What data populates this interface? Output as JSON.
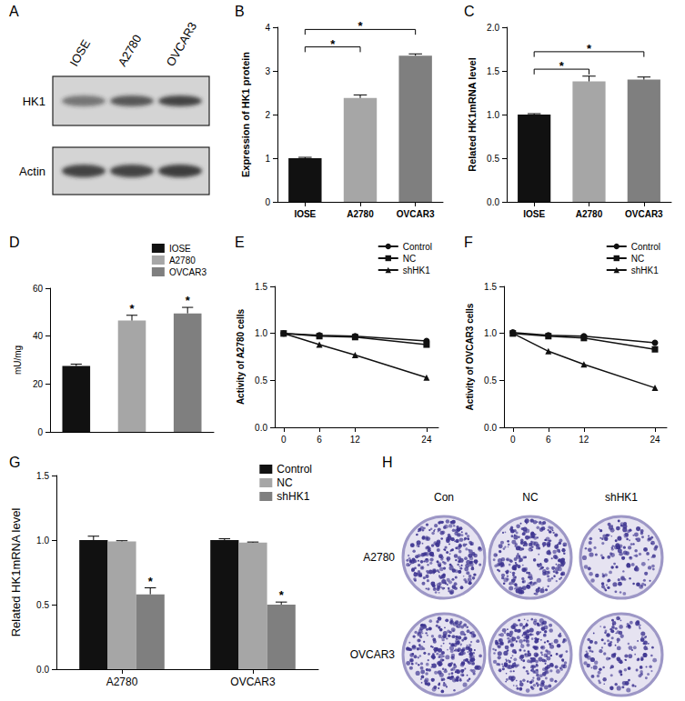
{
  "chart_data": [
    {
      "title": "B",
      "type": "bar",
      "categories": [
        "IOSE",
        "A2780",
        "OVCAR3"
      ],
      "values": [
        1.0,
        2.38,
        3.35
      ],
      "errors": [
        0.02,
        0.07,
        0.04
      ],
      "colors": [
        "#111111",
        "#a6a6a6",
        "#7f7f7f"
      ],
      "ylabel": "Expression of HK1 protein",
      "ylim": [
        0,
        4
      ],
      "yticks": [
        0,
        1,
        2,
        3,
        4
      ],
      "significance": [
        {
          "from": "IOSE",
          "to": "A2780",
          "label": "*"
        },
        {
          "from": "IOSE",
          "to": "OVCAR3",
          "label": "*"
        }
      ]
    },
    {
      "title": "C",
      "type": "bar",
      "categories": [
        "IOSE",
        "A2780",
        "OVCAR3"
      ],
      "values": [
        1.0,
        1.38,
        1.4
      ],
      "errors": [
        0.01,
        0.06,
        0.03
      ],
      "colors": [
        "#111111",
        "#a6a6a6",
        "#7f7f7f"
      ],
      "ylabel": "Related HK1mRNA level",
      "ylim": [
        0,
        2
      ],
      "yticks": [
        {
          "value": 0,
          "label": "0.0"
        },
        0.5,
        {
          "value": 1,
          "label": "1.0"
        },
        1.5,
        {
          "value": 2,
          "label": "2.0"
        }
      ],
      "significance": [
        {
          "from": "IOSE",
          "to": "A2780",
          "label": "*"
        },
        {
          "from": "IOSE",
          "to": "OVCAR3",
          "label": "*"
        }
      ]
    },
    {
      "title": "D",
      "type": "bar",
      "categories": [
        null
      ],
      "series": [
        {
          "name": "IOSE",
          "color": "#111111",
          "values": [
            27.5
          ],
          "errors": [
            0.8
          ]
        },
        {
          "name": "A2780",
          "color": "#a6a6a6",
          "values": [
            46.5
          ],
          "errors": [
            2.2
          ],
          "significance": [
            "*"
          ]
        },
        {
          "name": "OVCAR3",
          "color": "#7f7f7f",
          "values": [
            49.5
          ],
          "errors": [
            2.5
          ],
          "significance": [
            "*"
          ]
        }
      ],
      "ylabel": "mU/mg",
      "ylim": [
        0,
        60
      ],
      "yticks": [
        0,
        20,
        40,
        60
      ],
      "legend": "top right",
      "tick_labels": "y"
    },
    {
      "title": "E",
      "type": "line",
      "x": [
        0,
        6,
        12,
        24
      ],
      "xlim": [
        -1.5,
        26
      ],
      "xticks": [
        0,
        6,
        12,
        24
      ],
      "series": [
        {
          "name": "Control",
          "color": "#111111",
          "marker": "circle",
          "values": [
            1.0,
            0.98,
            0.97,
            0.92
          ]
        },
        {
          "name": "NC",
          "color": "#111111",
          "marker": "square",
          "values": [
            1.0,
            0.97,
            0.96,
            0.88
          ]
        },
        {
          "name": "shHK1",
          "color": "#111111",
          "marker": "triangle",
          "values": [
            1.0,
            0.88,
            0.77,
            0.53
          ]
        }
      ],
      "ylabel": "Activity of A2780 cells",
      "ylim": [
        0,
        1.5
      ],
      "yticks": [
        {
          "value": 0,
          "label": "0.0"
        },
        0.5,
        {
          "value": 1,
          "label": "1.0"
        },
        1.5
      ],
      "legend": "top right"
    },
    {
      "title": "F",
      "type": "line",
      "x": [
        0,
        6,
        12,
        24
      ],
      "xlim": [
        -1.5,
        26
      ],
      "xticks": [
        0,
        6,
        12,
        24
      ],
      "series": [
        {
          "name": "Control",
          "color": "#111111",
          "marker": "circle",
          "values": [
            1.01,
            0.98,
            0.97,
            0.9
          ]
        },
        {
          "name": "NC",
          "color": "#111111",
          "marker": "square",
          "values": [
            1.0,
            0.97,
            0.95,
            0.83
          ]
        },
        {
          "name": "shHK1",
          "color": "#111111",
          "marker": "triangle",
          "values": [
            1.0,
            0.81,
            0.67,
            0.42
          ]
        }
      ],
      "ylabel": "Activity of OVCAR3 cells",
      "ylim": [
        0,
        1.5
      ],
      "yticks": [
        {
          "value": 0,
          "label": "0.0"
        },
        0.5,
        {
          "value": 1,
          "label": "1.0"
        },
        1.5
      ],
      "legend": "top right"
    },
    {
      "title": "G",
      "type": "bar",
      "categories": [
        "A2780",
        "OVCAR3"
      ],
      "series": [
        {
          "name": "Control",
          "color": "#111111",
          "values": [
            1.0,
            1.0
          ],
          "errors": [
            0.03,
            0.01
          ]
        },
        {
          "name": "NC",
          "color": "#a6a6a6",
          "values": [
            0.99,
            0.98
          ],
          "errors": [
            0.005,
            0.005
          ]
        },
        {
          "name": "shHK1",
          "color": "#7f7f7f",
          "values": [
            0.58,
            0.5
          ],
          "errors": [
            0.05,
            0.02
          ],
          "significance": [
            "*",
            "*"
          ]
        }
      ],
      "ylabel": "Related HK1mRNA level",
      "ylim": [
        0,
        1.5
      ],
      "yticks": [
        {
          "value": 0,
          "label": "0.0"
        },
        0.5,
        {
          "value": 1,
          "label": "1.0"
        },
        1.5
      ],
      "legend": "top right"
    }
  ],
  "blot": {
    "title": "A",
    "lanes": [
      "IOSE",
      "A2780",
      "OVCAR3"
    ],
    "rows": [
      "HK1",
      "Actin"
    ]
  },
  "colony_assay": {
    "title": "H",
    "columns": [
      "Con",
      "NC",
      "shHK1"
    ],
    "rows": [
      "A2780",
      "OVCAR3"
    ]
  }
}
